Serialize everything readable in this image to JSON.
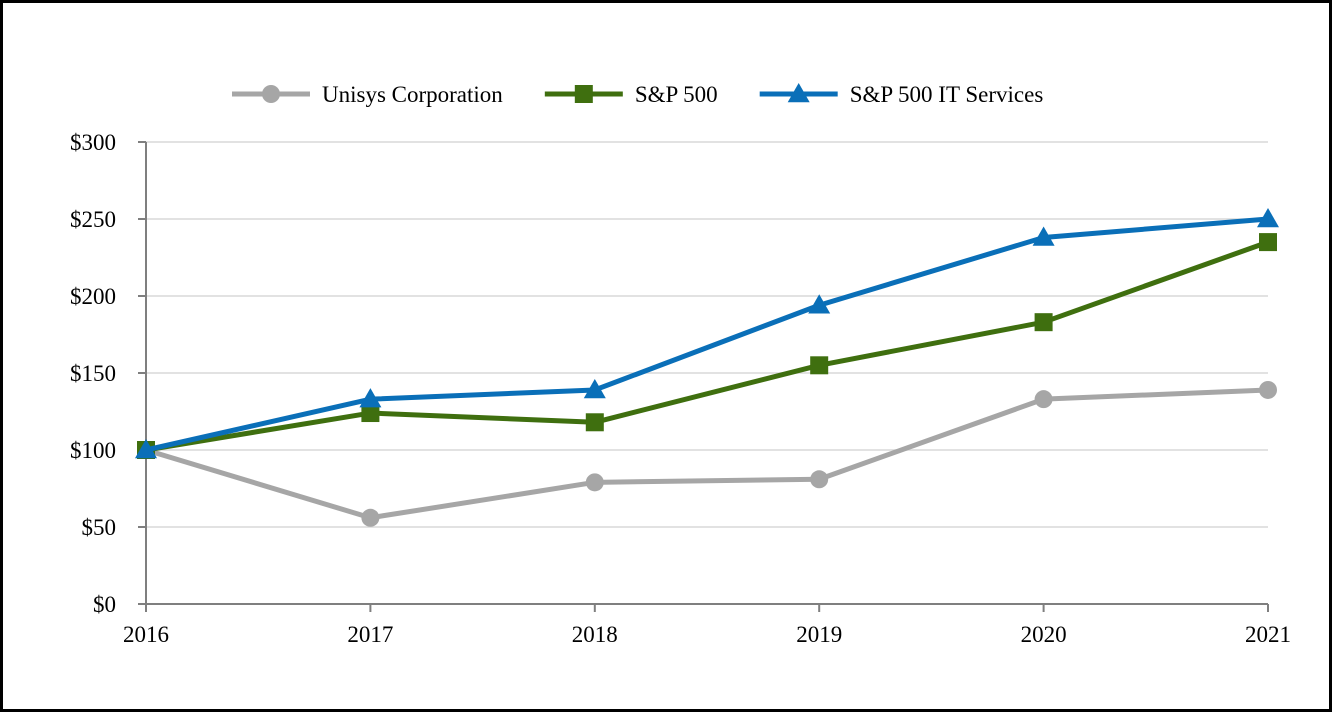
{
  "chart_data": {
    "type": "line",
    "title": "",
    "xlabel": "",
    "ylabel": "",
    "x": [
      "2016",
      "2017",
      "2018",
      "2019",
      "2020",
      "2021"
    ],
    "ylim": [
      0,
      300
    ],
    "y_ticks": [
      0,
      50,
      100,
      150,
      200,
      250,
      300
    ],
    "y_tick_labels": [
      "$0",
      "$50",
      "$100",
      "$150",
      "$200",
      "$250",
      "$300"
    ],
    "grid": true,
    "legend_position": "top-center",
    "series": [
      {
        "name": "Unisys Corporation",
        "color": "#a6a6a6",
        "marker": "circle",
        "values": [
          100,
          56,
          79,
          81,
          133,
          139
        ]
      },
      {
        "name": "S&P 500",
        "color": "#3f6f0f",
        "marker": "square",
        "values": [
          100,
          124,
          118,
          155,
          183,
          235
        ]
      },
      {
        "name": "S&P 500 IT Services",
        "color": "#0a6fb8",
        "marker": "triangle",
        "values": [
          100,
          133,
          139,
          194,
          238,
          250
        ]
      }
    ]
  }
}
